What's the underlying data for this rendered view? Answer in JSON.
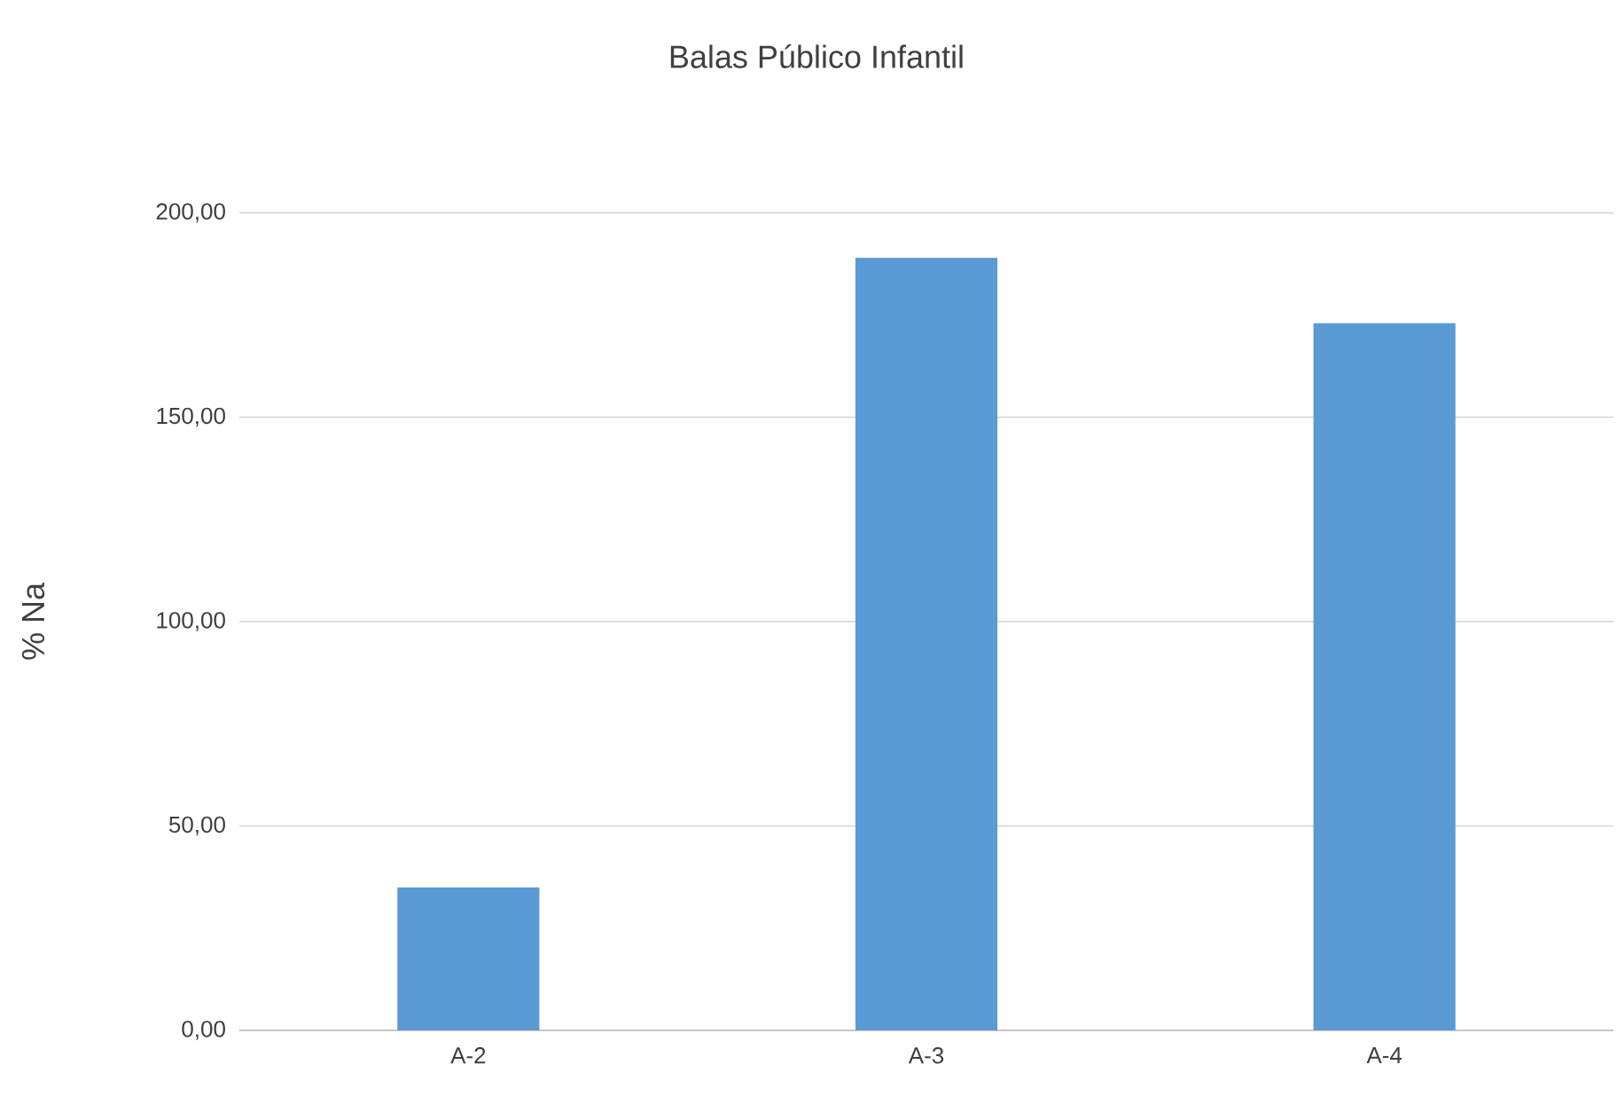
{
  "chart_data": {
    "type": "bar",
    "title": "Balas Público Infantil",
    "ylabel": "% Na",
    "categories": [
      "A-2",
      "A-3",
      "A-4"
    ],
    "values": [
      35,
      189,
      173
    ],
    "color": "#5b9bd5",
    "ylim": [
      0,
      200
    ],
    "yticks": [
      {
        "value": 0,
        "label": "0,00"
      },
      {
        "value": 50,
        "label": "50,00"
      },
      {
        "value": 100,
        "label": "100,00"
      },
      {
        "value": 150,
        "label": "150,00"
      },
      {
        "value": 200,
        "label": "200,00"
      }
    ],
    "grid": "y"
  }
}
